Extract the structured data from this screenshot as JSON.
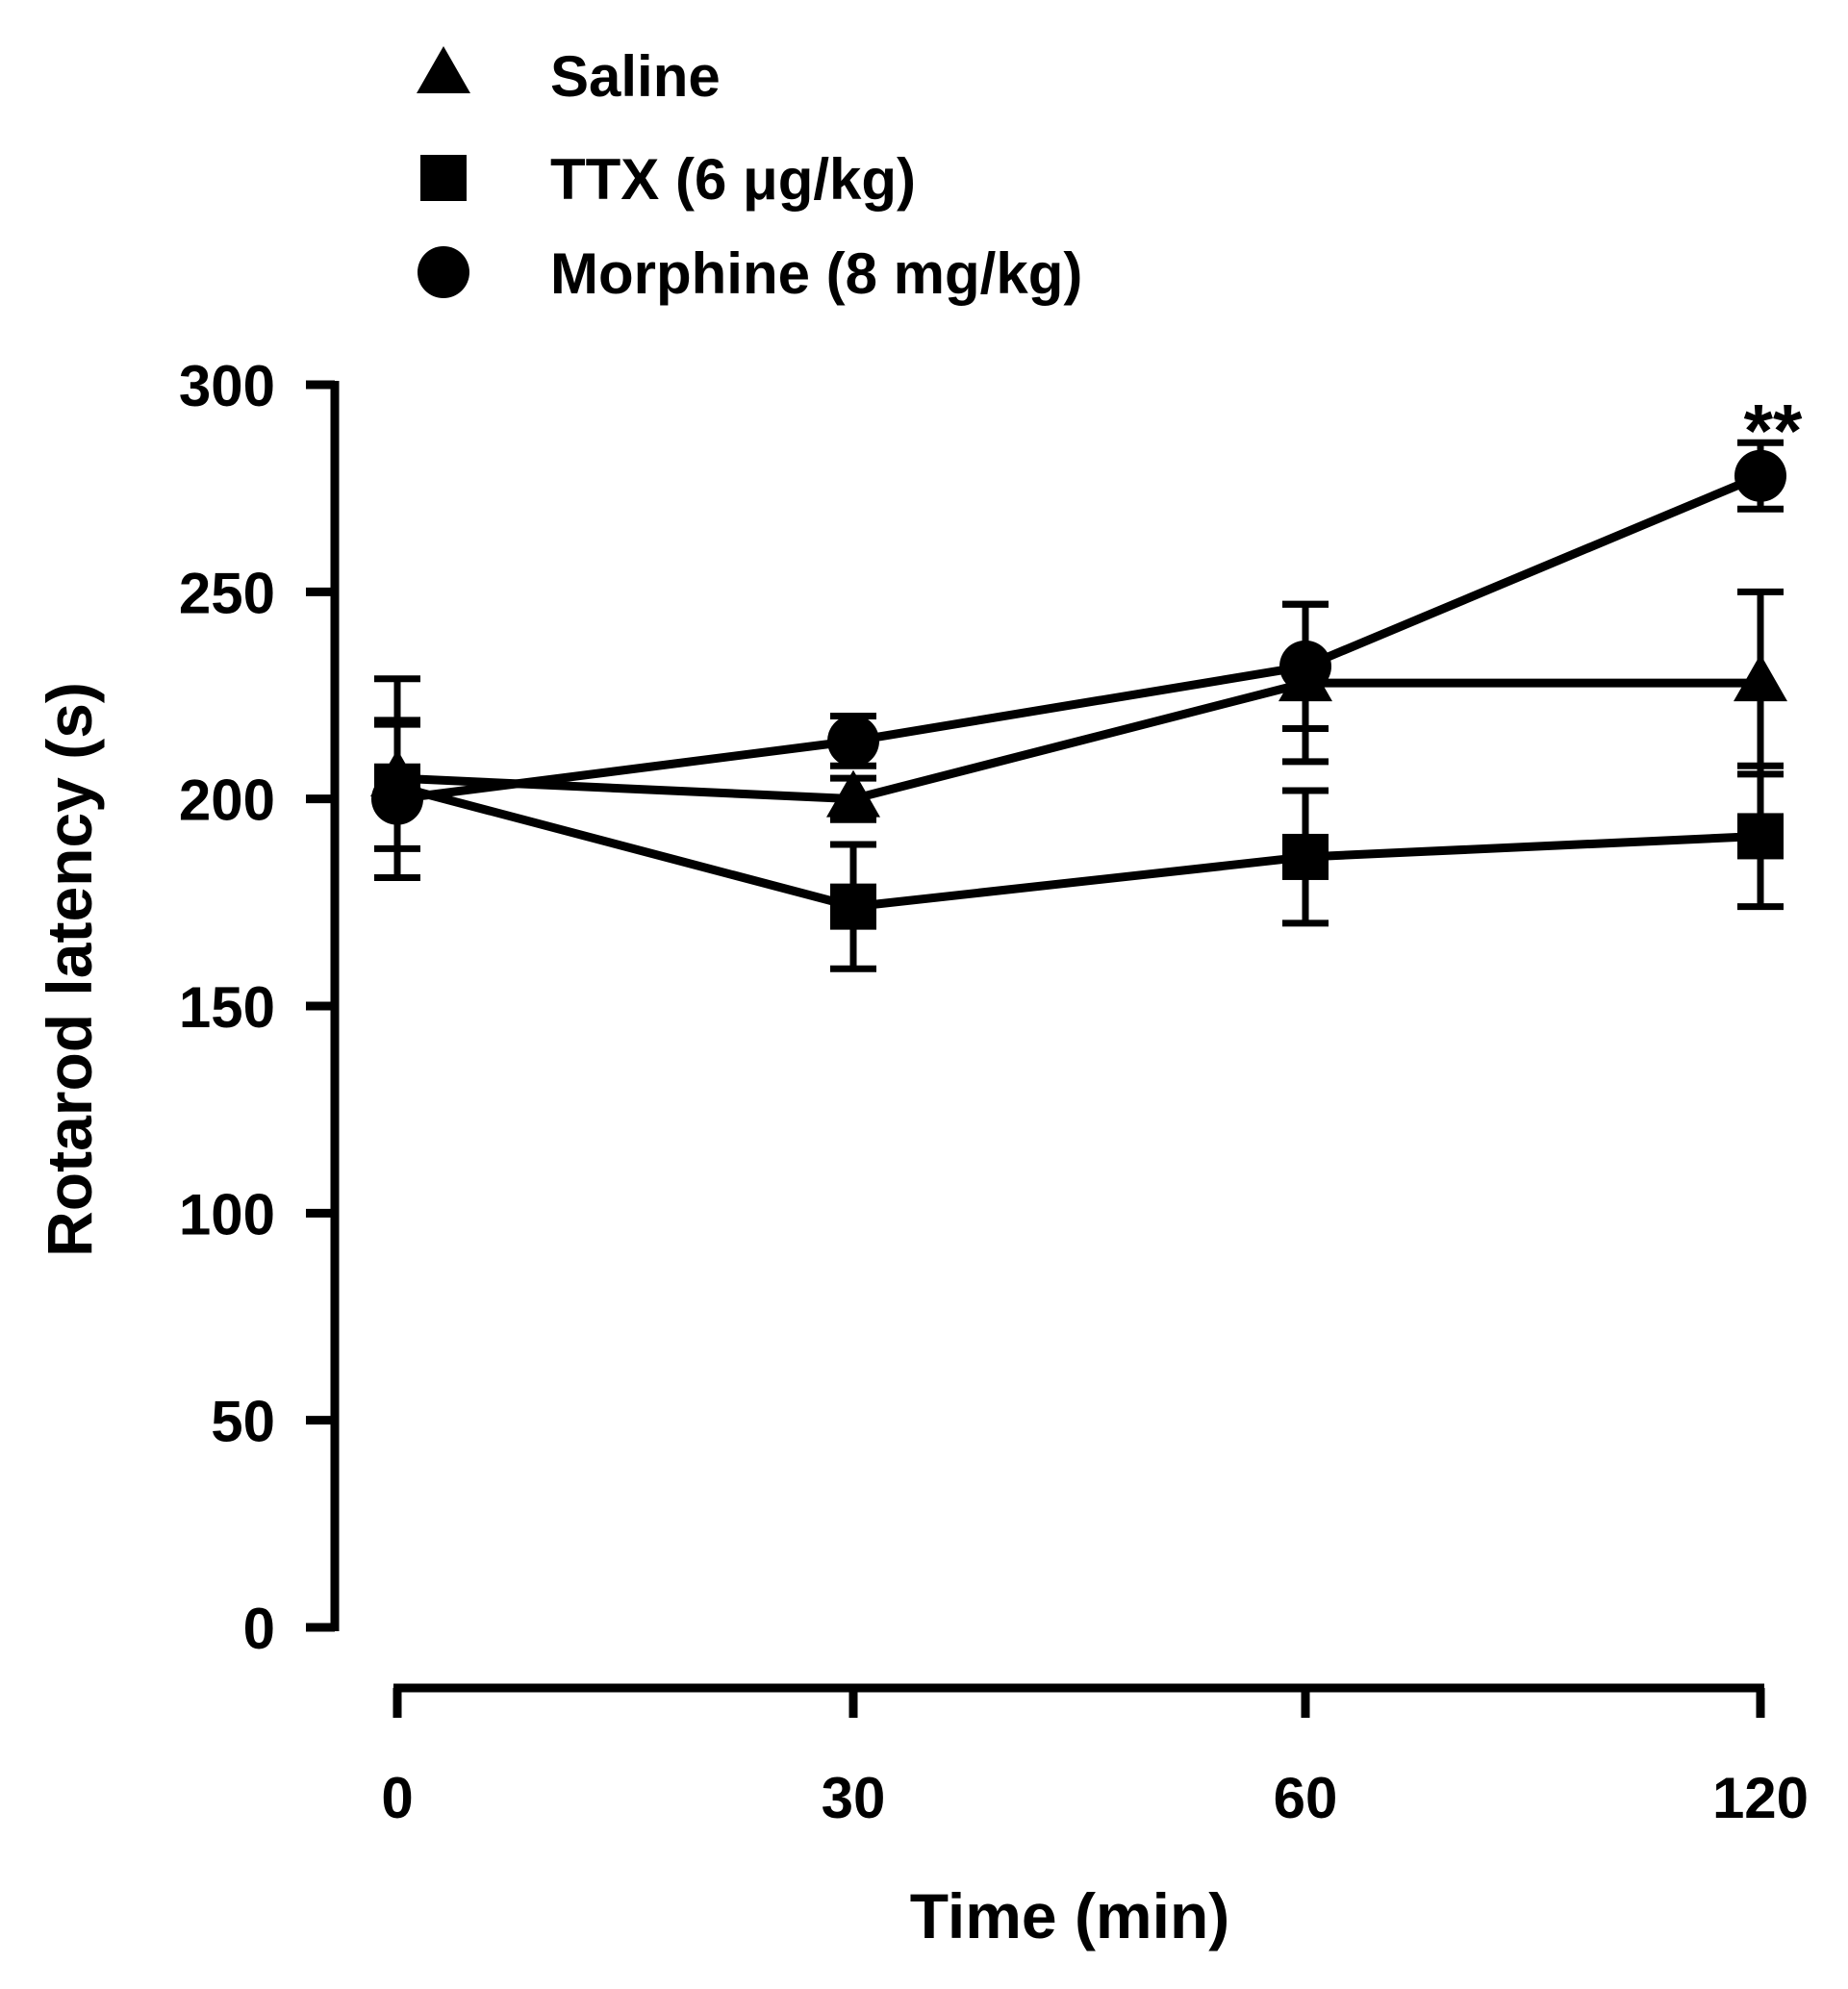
{
  "chart_data": {
    "type": "line",
    "title": "",
    "xlabel": "Time (min)",
    "ylabel": "Rotarod latency (s)",
    "categories": [
      "0",
      "30",
      "60",
      "120"
    ],
    "ylim": [
      0,
      300
    ],
    "yticks": [
      0,
      50,
      100,
      150,
      200,
      250,
      300
    ],
    "grid": false,
    "legend_position": "top-left",
    "series": [
      {
        "name": "Saline",
        "marker": "triangle",
        "values": [
          205,
          200,
          228,
          228
        ],
        "errors": [
          24,
          5,
          19,
          22
        ]
      },
      {
        "name": "TTX (6 μg/kg)",
        "marker": "square",
        "values": [
          203,
          174,
          186,
          191
        ],
        "errors": [
          15,
          15,
          16,
          17
        ]
      },
      {
        "name": "Morphine (8 mg/kg)",
        "marker": "circle",
        "values": [
          200,
          214,
          232,
          278
        ],
        "errors": [
          19,
          6,
          15,
          8
        ]
      }
    ],
    "annotations": [
      {
        "text": "**",
        "series": "Morphine (8 mg/kg)",
        "category": "120"
      }
    ]
  }
}
